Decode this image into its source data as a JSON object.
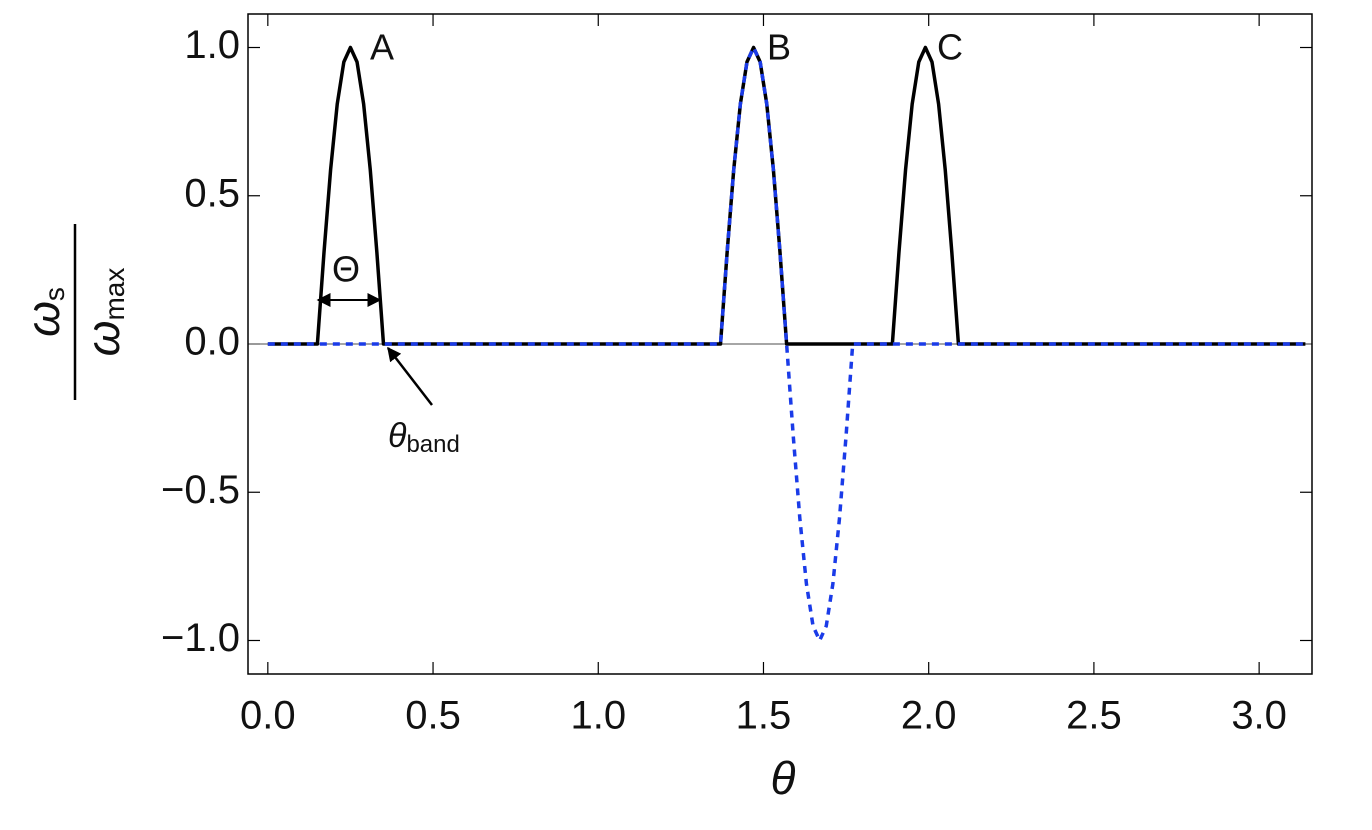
{
  "chart_data": {
    "type": "line",
    "x_label": "θ",
    "y_label": {
      "numerator": "ω",
      "numerator_sub": "s",
      "denominator": "ω",
      "denominator_sub": "max"
    },
    "annotations": [
      "A",
      "B",
      "C",
      "Θ"
    ],
    "band_label": {
      "text": "θ",
      "sub": "band"
    },
    "xlim": [
      -0.06,
      3.16
    ],
    "ylim": [
      -1.113,
      1.113
    ],
    "xticks": [
      {
        "value": 0,
        "label": "0.0"
      },
      {
        "value": 0.5,
        "label": "0.5"
      },
      {
        "value": 1,
        "label": "1.0"
      },
      {
        "value": 1.5,
        "label": "1.5"
      },
      {
        "value": 2,
        "label": "2.0"
      },
      {
        "value": 2.5,
        "label": "2.5"
      },
      {
        "value": 3,
        "label": "3.0"
      }
    ],
    "yticks": [
      {
        "value": -1,
        "label": "−1.0"
      },
      {
        "value": -0.5,
        "label": "−0.5"
      },
      {
        "value": 0,
        "label": "0.0"
      },
      {
        "value": 0.5,
        "label": "0.5"
      },
      {
        "value": 1,
        "label": "1.0"
      }
    ],
    "series": [
      {
        "color": "#000000",
        "dashed": false,
        "x": [
          0,
          0.15,
          0.17,
          0.19,
          0.21,
          0.23,
          0.25,
          0.27,
          0.29,
          0.31,
          0.33,
          0.35,
          1.37,
          1.39,
          1.41,
          1.43,
          1.45,
          1.47,
          1.49,
          1.51,
          1.53,
          1.55,
          1.57,
          1.89,
          1.91,
          1.93,
          1.95,
          1.97,
          1.99,
          2.01,
          2.03,
          2.05,
          2.07,
          2.09,
          3.14
        ],
        "values": [
          0,
          0,
          0.309,
          0.588,
          0.809,
          0.951,
          1,
          0.951,
          0.809,
          0.588,
          0.309,
          0,
          0,
          0.309,
          0.588,
          0.809,
          0.951,
          1,
          0.951,
          0.809,
          0.588,
          0.309,
          0,
          0,
          0.309,
          0.588,
          0.809,
          0.951,
          1,
          0.951,
          0.809,
          0.588,
          0.309,
          0,
          0
        ]
      },
      {
        "color": "#1a3be8",
        "dashed": true,
        "x": [
          0,
          1.37,
          1.39,
          1.41,
          1.43,
          1.45,
          1.47,
          1.49,
          1.51,
          1.53,
          1.55,
          1.57,
          1.59,
          1.61,
          1.63,
          1.65,
          1.67,
          1.69,
          1.71,
          1.73,
          1.75,
          1.77,
          3.14
        ],
        "values": [
          0,
          0,
          0.309,
          0.588,
          0.809,
          0.951,
          1,
          0.951,
          0.809,
          0.588,
          0.309,
          0,
          -0.309,
          -0.588,
          -0.809,
          -0.951,
          -1,
          -0.951,
          -0.809,
          -0.588,
          -0.309,
          0,
          0
        ]
      }
    ]
  }
}
